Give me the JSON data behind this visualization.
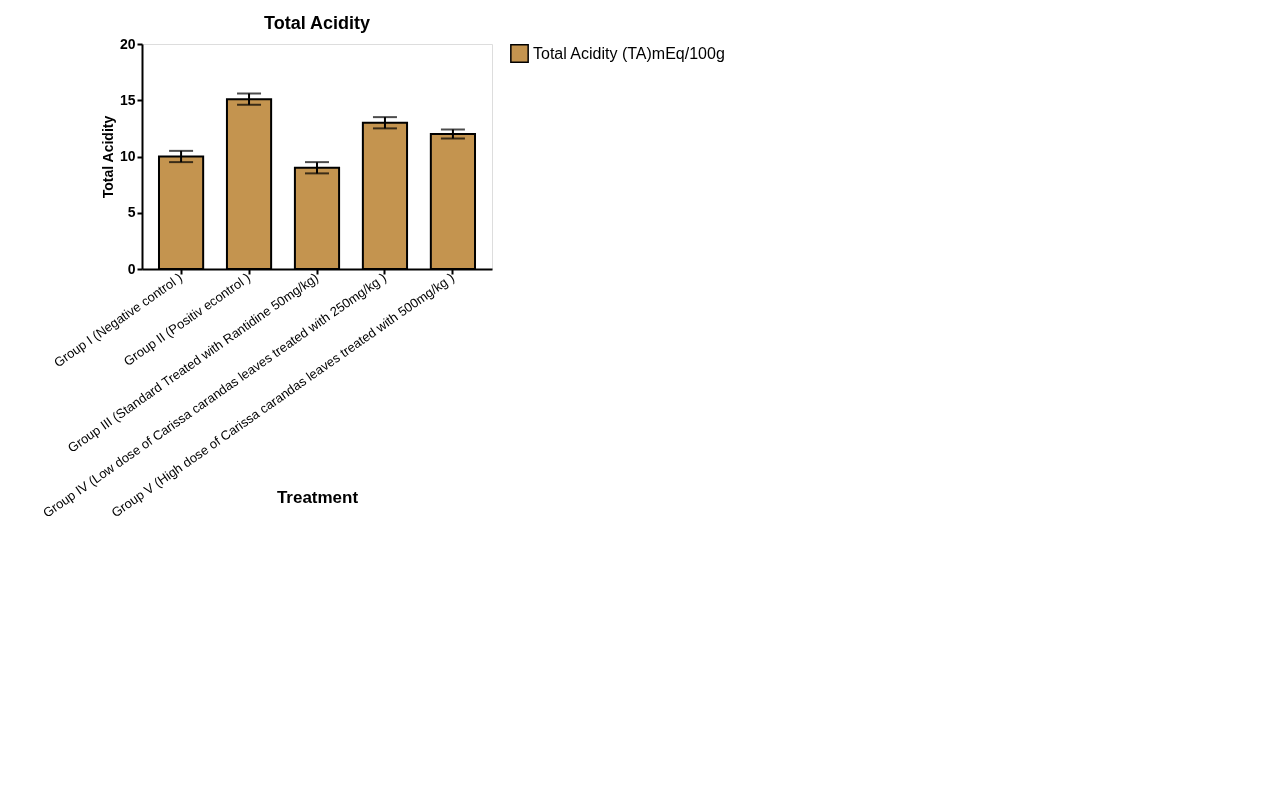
{
  "chart_data": {
    "type": "bar",
    "title": "Total Acidity",
    "xlabel": "Treatment",
    "ylabel": "Total Acidity",
    "categories": [
      "Group I (Negative control )",
      "Group II (Positiv econtrol )",
      "Group III (Standard  Treated  with Rantidine 50mg/kg)",
      "Group IV (Low dose of Carissa carandas leaves treated with 250mg/kg )",
      "Group V (High dose of Carissa carandas leaves treated with 500mg/kg )"
    ],
    "series": [
      {
        "name": "Total Acidity (TA)mEq/100g",
        "color": "#c4944f",
        "values": [
          10.0,
          15.1,
          9.0,
          13.0,
          12.0
        ],
        "errors": [
          0.5,
          0.5,
          0.5,
          0.5,
          0.4
        ]
      }
    ],
    "ylim": [
      0,
      20
    ],
    "yticks": [
      0,
      5,
      10,
      15,
      20
    ],
    "grid": false,
    "legend": "top right"
  }
}
